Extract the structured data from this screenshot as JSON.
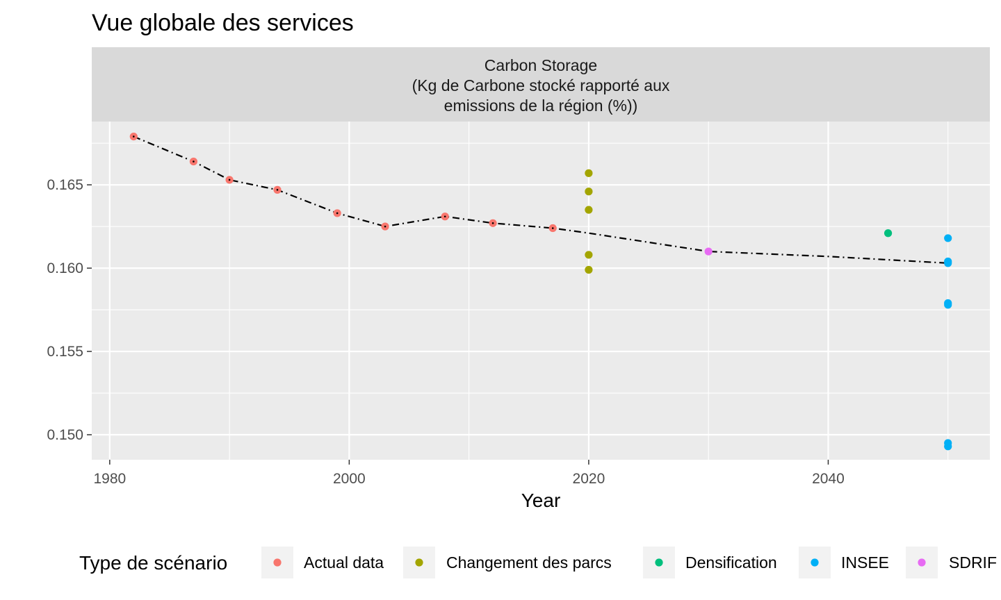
{
  "title": "Vue globale des services",
  "facet": {
    "lines": [
      "Carbon Storage",
      "(Kg de Carbone stocké rapporté aux",
      "emissions de la région (%))"
    ]
  },
  "chart_data": {
    "type": "scatter",
    "title": "Vue globale des services",
    "facet_label": "Carbon Storage (Kg de Carbone stocké rapporté aux emissions de la région (%))",
    "xlabel": "Year",
    "ylabel": "",
    "xlim": [
      1978.5,
      2053.5
    ],
    "ylim": [
      0.1485,
      0.1688
    ],
    "x_ticks": [
      1980,
      2000,
      2020,
      2040
    ],
    "x_tick_labels": [
      "1980",
      "2000",
      "2020",
      "2040"
    ],
    "y_ticks": [
      0.15,
      0.155,
      0.16,
      0.165
    ],
    "y_tick_labels": [
      "0.150",
      "0.155",
      "0.160",
      "0.165"
    ],
    "grid": true,
    "legend": {
      "title": "Type de scénario",
      "position": "bottom"
    },
    "series": [
      {
        "name": "Actual data",
        "color": "#F8766D",
        "points": [
          [
            1982,
            0.1679
          ],
          [
            1987,
            0.1664
          ],
          [
            1990,
            0.1653
          ],
          [
            1994,
            0.1647
          ],
          [
            1999,
            0.1633
          ],
          [
            2003,
            0.1625
          ],
          [
            2008,
            0.1631
          ],
          [
            2012,
            0.1627
          ],
          [
            2017,
            0.1624
          ]
        ]
      },
      {
        "name": "Changement des parcs",
        "color": "#A3A500",
        "points": [
          [
            2020,
            0.1657
          ],
          [
            2020,
            0.1646
          ],
          [
            2020,
            0.1635
          ],
          [
            2020,
            0.1608
          ],
          [
            2020,
            0.1599
          ]
        ]
      },
      {
        "name": "Densification",
        "color": "#00BF7D",
        "points": [
          [
            2045,
            0.1621
          ]
        ]
      },
      {
        "name": "INSEE",
        "color": "#00B0F6",
        "points": [
          [
            2050,
            0.1618
          ],
          [
            2050,
            0.1604
          ],
          [
            2050,
            0.1603
          ],
          [
            2050,
            0.1579
          ],
          [
            2050,
            0.1578
          ],
          [
            2050,
            0.1495
          ],
          [
            2050,
            0.1493
          ]
        ]
      },
      {
        "name": "SDRIF",
        "color": "#E76BF3",
        "points": [
          [
            2030,
            0.161
          ]
        ]
      }
    ],
    "trend_line": {
      "style": "dot-dash",
      "color": "#000000",
      "points": [
        [
          1982,
          0.1679
        ],
        [
          1987,
          0.1664
        ],
        [
          1990,
          0.1653
        ],
        [
          1994,
          0.1647
        ],
        [
          1999,
          0.1633
        ],
        [
          2003,
          0.1625
        ],
        [
          2008,
          0.1631
        ],
        [
          2012,
          0.1627
        ],
        [
          2017,
          0.1624
        ],
        [
          2020,
          0.1621
        ],
        [
          2030,
          0.161
        ],
        [
          2040,
          0.1607
        ],
        [
          2050,
          0.1603
        ]
      ]
    }
  }
}
